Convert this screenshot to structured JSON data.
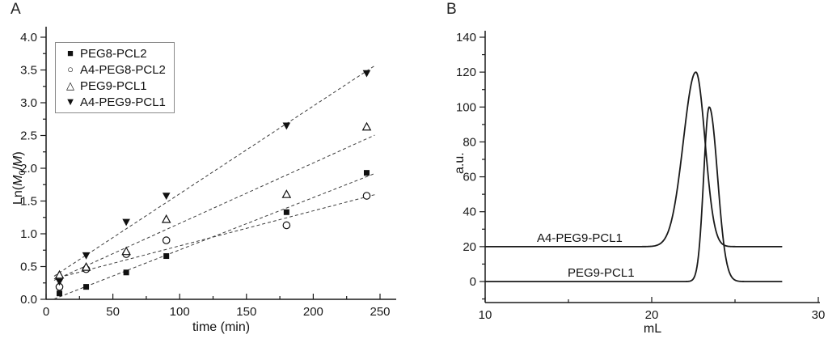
{
  "panel_a": {
    "letter": "A"
  },
  "panel_b": {
    "letter": "B"
  },
  "chart_data": [
    {
      "id": "polymerization-kinetics",
      "type": "scatter",
      "title": "",
      "xlabel": "time (min)",
      "ylabel": "Ln(M0/M)",
      "ylabel_parts": {
        "pre": "Ln(",
        "m0": "M",
        "sub": "0",
        "slash": "/",
        "m1": "M",
        "post": ")"
      },
      "xlim": [
        0,
        262
      ],
      "ylim": [
        0,
        4.15
      ],
      "xticks": [
        0,
        50,
        100,
        150,
        200,
        250
      ],
      "xminor": [
        25,
        75,
        125,
        175,
        225
      ],
      "yticks": [
        0.0,
        0.5,
        1.0,
        1.5,
        2.0,
        2.5,
        3.0,
        3.5,
        4.0
      ],
      "ytick_labels": [
        "0.0",
        "0.5",
        "1.0",
        "1.5",
        "2.0",
        "2.5",
        "3.0",
        "3.5",
        "4.0"
      ],
      "yminor": [
        0.25,
        0.75,
        1.25,
        1.75,
        2.25,
        2.75,
        3.25,
        3.75
      ],
      "grid": false,
      "legend_position": "top-left",
      "fit": {
        "style": "dashed-linear-least-squares",
        "x_start": 6,
        "x_end": 246
      },
      "x": [
        10,
        30,
        60,
        90,
        180,
        240
      ],
      "series": [
        {
          "name": "PEG8-PCL2",
          "marker": "square-filled",
          "values": [
            0.09,
            0.19,
            0.41,
            0.66,
            1.33,
            1.93
          ]
        },
        {
          "name": "A4-PEG8-PCL2",
          "marker": "circle-open",
          "values": [
            0.19,
            0.46,
            0.69,
            0.9,
            1.13,
            1.58
          ]
        },
        {
          "name": "PEG9-PCL1",
          "marker": "triangle-up-open",
          "values": [
            0.37,
            0.49,
            0.73,
            1.22,
            1.6,
            2.63
          ]
        },
        {
          "name": "A4-PEG9-PCL1",
          "marker": "triangle-down-filled",
          "values": [
            0.27,
            0.67,
            1.18,
            1.58,
            2.65,
            3.45
          ]
        }
      ],
      "line_color": "#1a1a1a"
    },
    {
      "id": "gpc-traces",
      "type": "line",
      "title": "",
      "xlabel": "mL",
      "ylabel": "a.u.",
      "xlim": [
        10,
        30.3
      ],
      "ylim": [
        -12,
        144
      ],
      "xticks": [
        10,
        20,
        30
      ],
      "xminor": [
        15,
        25
      ],
      "yticks": [
        0,
        20,
        40,
        60,
        80,
        100,
        120,
        140
      ],
      "yminor": [
        -10,
        10,
        30,
        50,
        70,
        90,
        110,
        130
      ],
      "grid": false,
      "curves": [
        {
          "name": "A4-PEG9-PCL1",
          "baseline": 20,
          "peak_center_mL": 22.65,
          "peak_value": 120,
          "sigma_left": 0.75,
          "sigma_right": 0.55,
          "x_start": 10,
          "x_end": 27.8
        },
        {
          "name": "PEG9-PCL1",
          "baseline": 0,
          "peak_center_mL": 23.45,
          "peak_value": 100,
          "sigma_left": 0.33,
          "sigma_right": 0.5,
          "x_start": 10,
          "x_end": 27.8
        }
      ],
      "line_color": "#1a1a1a"
    }
  ]
}
